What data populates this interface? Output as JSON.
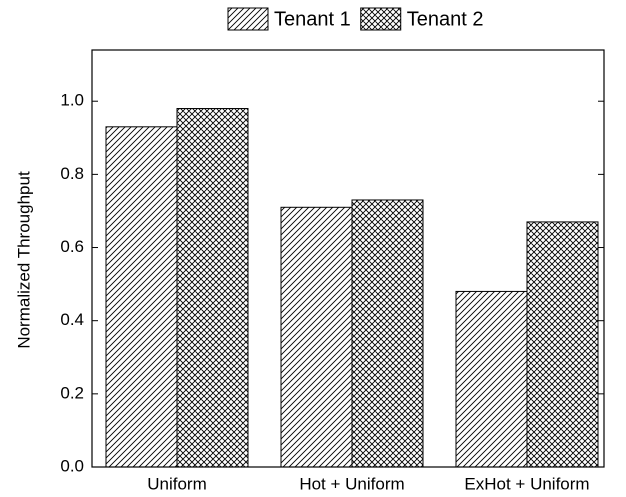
{
  "chart_data": {
    "type": "bar",
    "ylabel": "Normalized Throughput",
    "categories": [
      "Uniform",
      "Hot + Uniform",
      "ExHot + Uniform"
    ],
    "series": [
      {
        "name": "Tenant 1",
        "color": "#000000",
        "hatch": "diagonal",
        "values": [
          0.93,
          0.71,
          0.48
        ]
      },
      {
        "name": "Tenant 2",
        "color": "#000000",
        "hatch": "crosshatch",
        "values": [
          0.98,
          0.73,
          0.67
        ]
      }
    ],
    "ylim": [
      0,
      1.14
    ],
    "yticks": [
      {
        "value": 0,
        "label": "0.0"
      },
      0.2,
      0.4,
      0.6,
      0.8,
      {
        "value": 1,
        "label": "1.0"
      }
    ],
    "legend": "top"
  }
}
